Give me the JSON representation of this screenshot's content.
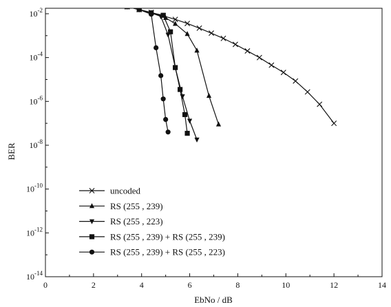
{
  "chart_data": {
    "type": "line",
    "xlabel": "EbNo / dB",
    "ylabel": "BER",
    "xlim": [
      0,
      14
    ],
    "ylim_log10": [
      -14,
      -1.75
    ],
    "y_scale": "log",
    "x_ticks": [
      "0",
      "2",
      "4",
      "6",
      "8",
      "10",
      "12",
      "14"
    ],
    "y_tick_base": "10",
    "y_tick_exponents": [
      "-2",
      "-4",
      "-6",
      "-8",
      "-10",
      "-12",
      "-14"
    ],
    "legend_position": "bottom-left",
    "grid": false,
    "series": [
      {
        "name": "uncoded",
        "marker": "x",
        "x": [
          0.4,
          0.9,
          1.4,
          1.9,
          2.4,
          2.9,
          3.4,
          3.9,
          4.4,
          4.9,
          5.4,
          5.9,
          6.4,
          6.9,
          7.4,
          7.9,
          8.4,
          8.9,
          9.4,
          9.9,
          10.4,
          10.9,
          11.4,
          12.0
        ],
        "y": [
          0.07,
          0.058,
          0.048,
          0.04,
          0.033,
          0.026,
          0.021,
          0.0155,
          0.0115,
          0.008,
          0.0055,
          0.0036,
          0.0022,
          0.0013,
          0.00075,
          0.0004,
          0.0002,
          0.0001,
          4.5e-05,
          2.1e-05,
          8.5e-06,
          2.7e-06,
          7.4e-07,
          1e-07
        ]
      },
      {
        "name": "RS (255 , 239)",
        "marker": "triangle-up",
        "x": [
          0.4,
          0.9,
          1.4,
          1.9,
          2.4,
          2.9,
          3.4,
          3.9,
          4.4,
          5.0,
          5.4,
          5.9,
          6.3,
          6.8,
          7.2
        ],
        "y": [
          0.07,
          0.058,
          0.048,
          0.04,
          0.033,
          0.026,
          0.021,
          0.0155,
          0.011,
          0.0065,
          0.0035,
          0.0012,
          0.00021,
          1.8e-06,
          9e-08
        ]
      },
      {
        "name": "RS (255 , 223)",
        "marker": "triangle-down",
        "x": [
          0.4,
          0.9,
          1.4,
          1.9,
          2.4,
          2.9,
          3.4,
          3.9,
          4.4,
          4.8,
          5.1,
          5.4,
          5.7,
          6.0,
          6.3
        ],
        "y": [
          0.07,
          0.058,
          0.048,
          0.04,
          0.033,
          0.026,
          0.021,
          0.0155,
          0.011,
          0.0075,
          0.0011,
          3.5e-05,
          1.7e-06,
          1.3e-07,
          1.8e-08
        ]
      },
      {
        "name": "RS (255 , 239) + RS (255 , 239)",
        "marker": "square",
        "x": [
          0.4,
          0.9,
          1.4,
          1.9,
          2.4,
          2.9,
          3.4,
          3.9,
          4.4,
          4.9,
          5.2,
          5.4,
          5.6,
          5.8,
          5.9
        ],
        "y": [
          0.07,
          0.058,
          0.048,
          0.04,
          0.033,
          0.026,
          0.021,
          0.0155,
          0.011,
          0.0085,
          0.0015,
          3.5e-05,
          3.5e-06,
          2.5e-07,
          3.5e-08
        ]
      },
      {
        "name": "RS (255 , 239) + RS (255 , 223)",
        "marker": "circle",
        "x": [
          0.4,
          0.9,
          1.4,
          1.9,
          2.4,
          2.9,
          3.4,
          3.9,
          4.4,
          4.6,
          4.8,
          4.9,
          5.0,
          5.1
        ],
        "y": [
          0.07,
          0.058,
          0.048,
          0.04,
          0.033,
          0.026,
          0.021,
          0.0155,
          0.0095,
          0.00028,
          1.5e-05,
          1.3e-06,
          1.5e-07,
          4e-08
        ]
      }
    ]
  }
}
